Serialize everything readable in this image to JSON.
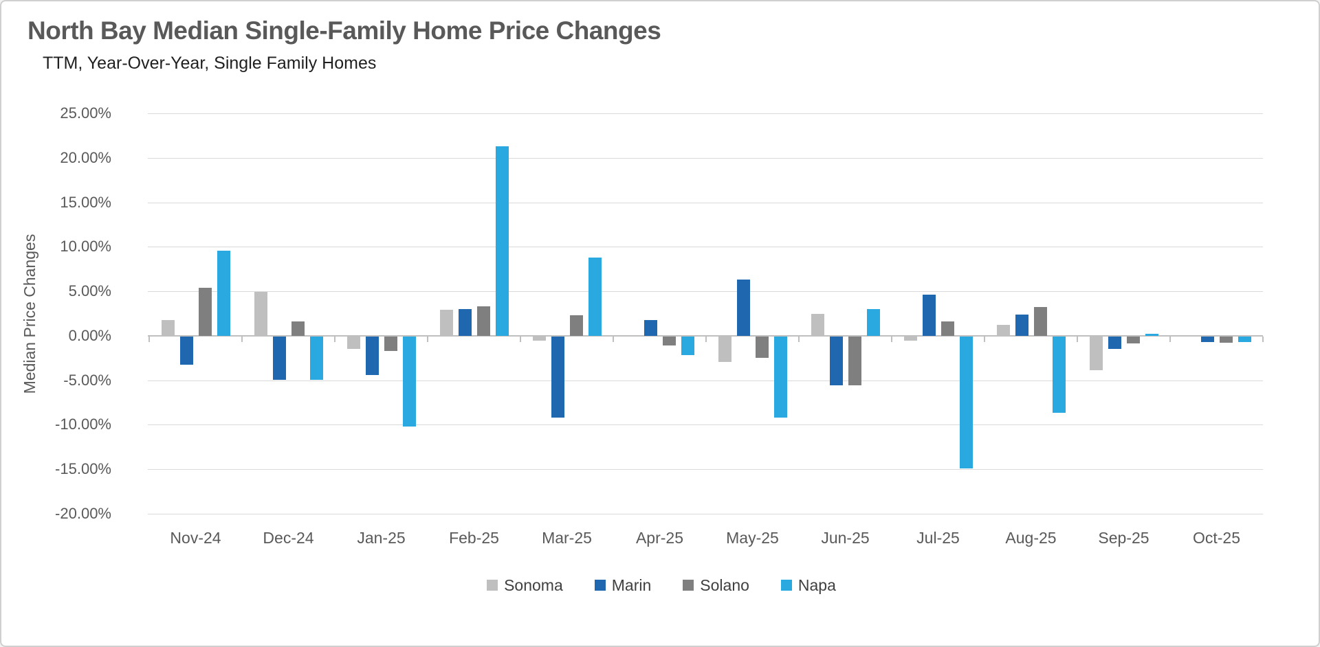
{
  "chart_data": {
    "type": "bar",
    "title": "North Bay Median Single-Family Home Price Changes",
    "subtitle": "TTM, Year-Over-Year, Single Family Homes",
    "ylabel": "Median Price Changes",
    "xlabel": "",
    "ylim": [
      -20,
      25
    ],
    "ytick_step": 5,
    "yticks": [
      {
        "value": 25,
        "label": "25.00%"
      },
      {
        "value": 20,
        "label": "20.00%"
      },
      {
        "value": 15,
        "label": "15.00%"
      },
      {
        "value": 10,
        "label": "10.00%"
      },
      {
        "value": 5,
        "label": "5.00%"
      },
      {
        "value": 0,
        "label": "0.00%"
      },
      {
        "value": -5,
        "label": "-5.00%"
      },
      {
        "value": -10,
        "label": "-10.00%"
      },
      {
        "value": -15,
        "label": "-15.00%"
      },
      {
        "value": -20,
        "label": "-20.00%"
      }
    ],
    "grid": true,
    "legend_position": "bottom",
    "values_unit": "percent",
    "categories": [
      "Nov-24",
      "Dec-24",
      "Jan-25",
      "Feb-25",
      "Mar-25",
      "Apr-25",
      "May-25",
      "Jun-25",
      "Jul-25",
      "Aug-25",
      "Sep-25",
      "Oct-25"
    ],
    "series": [
      {
        "name": "Sonoma",
        "color": "#bfbfbf",
        "values": [
          1.8,
          4.9,
          -1.4,
          2.9,
          -0.5,
          0.0,
          -2.9,
          2.5,
          -0.5,
          1.2,
          -3.8,
          0.0
        ]
      },
      {
        "name": "Marin",
        "color": "#1f68b0",
        "values": [
          -3.2,
          -4.9,
          -4.3,
          3.0,
          -9.1,
          1.8,
          6.3,
          -5.5,
          4.6,
          2.4,
          -1.4,
          -0.6
        ]
      },
      {
        "name": "Solano",
        "color": "#7f7f7f",
        "values": [
          5.4,
          1.6,
          -1.6,
          3.3,
          2.3,
          -1.0,
          -2.4,
          -5.5,
          1.6,
          3.2,
          -0.8,
          -0.7
        ]
      },
      {
        "name": "Napa",
        "color": "#29a9e0",
        "values": [
          9.6,
          -4.9,
          -10.1,
          21.3,
          8.8,
          -2.1,
          -9.1,
          3.0,
          -14.8,
          -8.6,
          0.2,
          -0.6
        ]
      }
    ]
  }
}
